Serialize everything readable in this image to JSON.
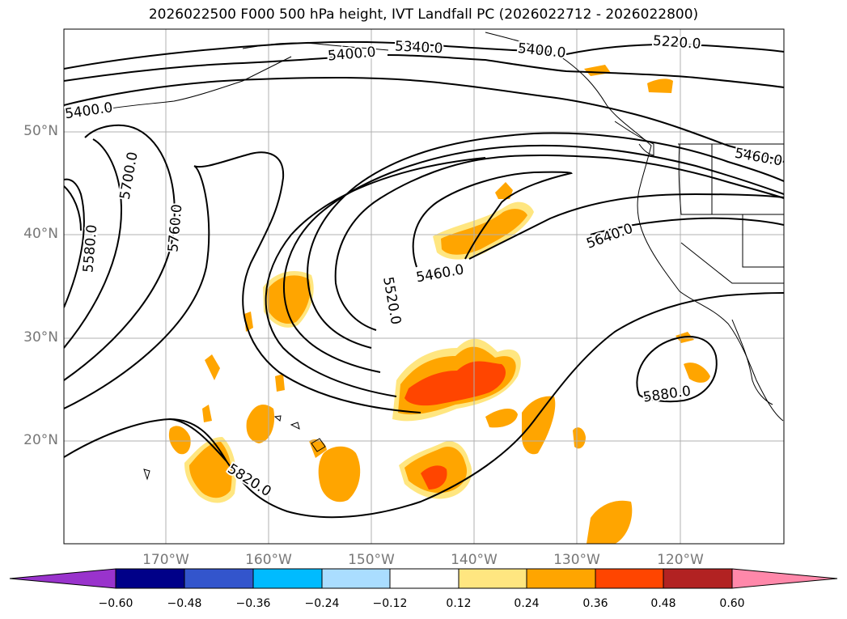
{
  "title": "2026022500 F000 500 hPa height, IVT Landfall PC (2026022712 - 2026022800)",
  "lat_labels": [
    "50°N",
    "40°N",
    "30°N",
    "20°N"
  ],
  "lon_labels": [
    "170°W",
    "160°W",
    "150°W",
    "140°W",
    "130°W",
    "120°W"
  ],
  "contour_labels": [
    "5220.0",
    "5340.0",
    "5400.0",
    "5400.0",
    "5460.0",
    "5460.0",
    "5520.0",
    "5580.0",
    "5640.0",
    "5700.0",
    "5760.0",
    "5820.0",
    "5880.0",
    "5400.0"
  ],
  "colorbar": {
    "ticks": [
      "−0.60",
      "−0.48",
      "−0.36",
      "−0.24",
      "−0.12",
      "0.12",
      "0.24",
      "0.36",
      "0.48",
      "0.60"
    ],
    "colors": [
      "#9933cc",
      "#000088",
      "#3355cc",
      "#00bbff",
      "#aaddff",
      "#ffffff",
      "#ffe680",
      "#ffa500",
      "#ff4500",
      "#b22222",
      "#ff88aa",
      "#ff88aa"
    ]
  },
  "chart_data": {
    "type": "contour-map",
    "variable": "500 hPa height",
    "shaded_variable": "IVT Landfall PC",
    "contour_levels": [
      5220,
      5340,
      5400,
      5460,
      5520,
      5580,
      5640,
      5700,
      5760,
      5820,
      5880
    ],
    "colorbar_bounds": [
      -0.6,
      -0.48,
      -0.36,
      -0.24,
      -0.12,
      0.12,
      0.24,
      0.36,
      0.48,
      0.6
    ],
    "lon_range": [
      -180,
      -110
    ],
    "lat_range": [
      10,
      60
    ]
  }
}
